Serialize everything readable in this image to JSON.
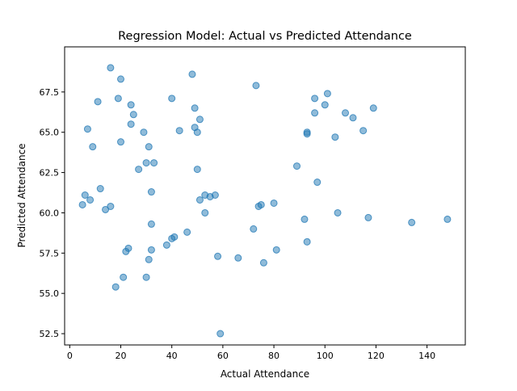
{
  "chart_data": {
    "type": "scatter",
    "title": "Regression Model: Actual vs Predicted Attendance",
    "xlabel": "Actual Attendance",
    "ylabel": "Predicted Attendance",
    "xlim": [
      -2,
      155
    ],
    "ylim": [
      51.8,
      70.3
    ],
    "xticks": [
      0,
      20,
      40,
      60,
      80,
      100,
      120,
      140
    ],
    "xtick_labels": [
      "0",
      "20",
      "40",
      "60",
      "80",
      "100",
      "120",
      "140"
    ],
    "yticks": [
      52.5,
      55.0,
      57.5,
      60.0,
      62.5,
      65.0,
      67.5
    ],
    "ytick_labels": [
      "52.5",
      "55.0",
      "57.5",
      "60.0",
      "62.5",
      "65.0",
      "67.5"
    ],
    "grid": false,
    "marker_color": "#1f77b4",
    "marker_alpha": 0.5,
    "points": [
      [
        16,
        69.0
      ],
      [
        20,
        68.3
      ],
      [
        48,
        68.6
      ],
      [
        73,
        67.9
      ],
      [
        19,
        67.1
      ],
      [
        11,
        66.9
      ],
      [
        24,
        66.7
      ],
      [
        40,
        67.1
      ],
      [
        96,
        67.1
      ],
      [
        101,
        67.4
      ],
      [
        100,
        66.7
      ],
      [
        25,
        66.1
      ],
      [
        49,
        66.5
      ],
      [
        96,
        66.2
      ],
      [
        108,
        66.2
      ],
      [
        111,
        65.9
      ],
      [
        119,
        66.5
      ],
      [
        24,
        65.5
      ],
      [
        7,
        65.2
      ],
      [
        29,
        65.0
      ],
      [
        43,
        65.1
      ],
      [
        49,
        65.3
      ],
      [
        50,
        65.0
      ],
      [
        51,
        65.8
      ],
      [
        93,
        65.0
      ],
      [
        93,
        64.9
      ],
      [
        104,
        64.7
      ],
      [
        115,
        65.1
      ],
      [
        9,
        64.1
      ],
      [
        20,
        64.4
      ],
      [
        31,
        64.1
      ],
      [
        30,
        63.1
      ],
      [
        33,
        63.1
      ],
      [
        27,
        62.7
      ],
      [
        50,
        62.7
      ],
      [
        89,
        62.9
      ],
      [
        97,
        61.9
      ],
      [
        12,
        61.5
      ],
      [
        6,
        61.1
      ],
      [
        32,
        61.3
      ],
      [
        8,
        60.8
      ],
      [
        53,
        61.1
      ],
      [
        55,
        61.0
      ],
      [
        57,
        61.1
      ],
      [
        51,
        60.8
      ],
      [
        5,
        60.5
      ],
      [
        16,
        60.4
      ],
      [
        14,
        60.2
      ],
      [
        74,
        60.4
      ],
      [
        75,
        60.5
      ],
      [
        80,
        60.6
      ],
      [
        53,
        60.0
      ],
      [
        105,
        60.0
      ],
      [
        92,
        59.6
      ],
      [
        117,
        59.7
      ],
      [
        134,
        59.4
      ],
      [
        148,
        59.6
      ],
      [
        32,
        59.3
      ],
      [
        72,
        59.0
      ],
      [
        46,
        58.8
      ],
      [
        40,
        58.4
      ],
      [
        41,
        58.5
      ],
      [
        38,
        58.0
      ],
      [
        93,
        58.2
      ],
      [
        23,
        57.8
      ],
      [
        22,
        57.6
      ],
      [
        32,
        57.7
      ],
      [
        81,
        57.7
      ],
      [
        31,
        57.1
      ],
      [
        58,
        57.3
      ],
      [
        66,
        57.2
      ],
      [
        76,
        56.9
      ],
      [
        21,
        56.0
      ],
      [
        30,
        56.0
      ],
      [
        18,
        55.4
      ],
      [
        59,
        52.5
      ]
    ]
  }
}
